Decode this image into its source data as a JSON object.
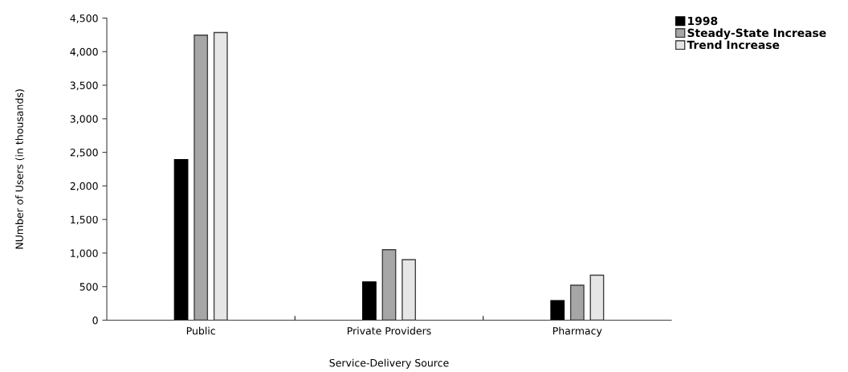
{
  "chart_data": {
    "type": "bar",
    "xlabel": "Service-Delivery Source",
    "ylabel": "NUmber of Users (in thousands)",
    "categories": [
      "Public",
      "Private Providers",
      "Pharmacy"
    ],
    "series": [
      {
        "name": "1998",
        "color": "#000000",
        "values": [
          2390,
          570,
          290
        ]
      },
      {
        "name": "Steady-State Increase",
        "color": "#a6a6a6",
        "values": [
          4245,
          1050,
          520
        ]
      },
      {
        "name": "Trend Increase",
        "color": "#e6e6e6",
        "values": [
          4285,
          900,
          670
        ]
      }
    ],
    "ylim": [
      0,
      4500
    ],
    "yticks": [
      {
        "value": 0,
        "label": "0"
      },
      {
        "value": 500,
        "label": "500"
      },
      {
        "value": 1000,
        "label": "1,000"
      },
      {
        "value": 1500,
        "label": "1,500"
      },
      {
        "value": 2000,
        "label": "2,000"
      },
      {
        "value": 2500,
        "label": "2,500"
      },
      {
        "value": 3000,
        "label": "3,000"
      },
      {
        "value": 3500,
        "label": "3,500"
      },
      {
        "value": 4000,
        "label": "4,000"
      },
      {
        "value": 4500,
        "label": "4,500"
      }
    ],
    "grid": false,
    "legend": "top right"
  }
}
